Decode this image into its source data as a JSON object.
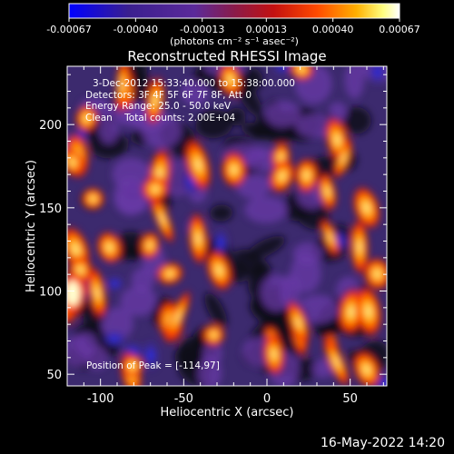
{
  "colorbar": {
    "ticks": [
      "-0.00067",
      "-0.00040",
      "-0.00013",
      "0.00013",
      "0.00040",
      "0.00067"
    ],
    "tick_values": [
      -0.00067,
      -0.0004,
      -0.00013,
      0.00013,
      0.0004,
      0.00067
    ],
    "unit_label": "(photons cm⁻² s⁻¹ asec⁻²)",
    "colors": [
      "#0000ff",
      "#3a1f8f",
      "#5b2a9a",
      "#8a1b4a",
      "#c41010",
      "#ff4a00",
      "#ffb000",
      "#ffff80",
      "#ffffff"
    ]
  },
  "chart_data": {
    "type": "heatmap",
    "title": "Reconstructed RHESSI Image",
    "xlabel": "Heliocentric X (arcsec)",
    "ylabel": "Heliocentric Y (arcsec)",
    "xlim": [
      -120,
      72
    ],
    "ylim": [
      43,
      235
    ],
    "xticks": [
      -100,
      -50,
      0,
      50
    ],
    "xtick_labels": [
      "-100",
      "-50",
      "0",
      "50"
    ],
    "yticks": [
      50,
      100,
      150,
      200
    ],
    "ytick_labels": [
      "50",
      "100",
      "150",
      "200"
    ],
    "peak_position": [
      -114,
      97
    ],
    "annotations": [
      "3-Dec-2012 15:33:40.000 to 15:38:00.000",
      "Detectors: 3F 4F 5F 6F 7F 8F, Att 0",
      "Energy Range: 25.0 - 50.0 keV",
      "Clean    Total counts: 2.00E+04"
    ],
    "peak_label": "Position of Peak = [-114,97]"
  },
  "footer": {
    "timestamp": "16-May-2022 14:20"
  }
}
